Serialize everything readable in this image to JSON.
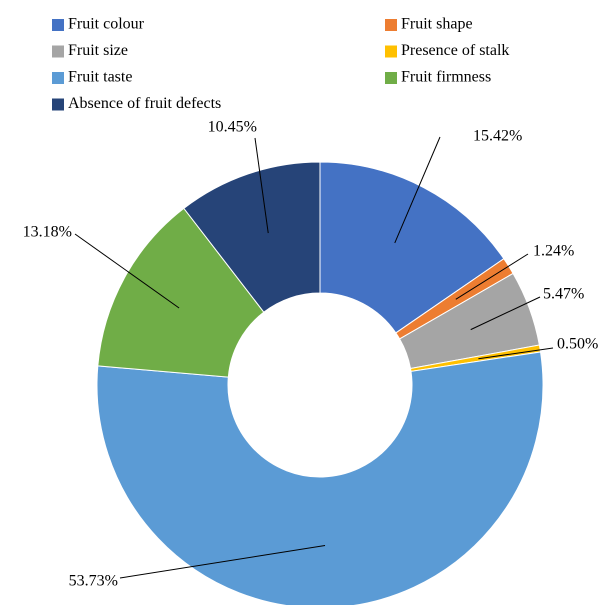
{
  "chart_data": {
    "type": "donut",
    "categories": [
      "Fruit colour",
      "Fruit shape",
      "Fruit size",
      "Presence of stalk",
      "Fruit taste",
      "Fruit firmness",
      "Absence of fruit defects"
    ],
    "values": [
      15.42,
      1.24,
      5.47,
      0.5,
      53.73,
      13.18,
      10.45
    ],
    "value_labels": [
      "15.42%",
      "1.24%",
      "5.47%",
      "0.50%",
      "53.73%",
      "13.18%",
      "10.45%"
    ],
    "colors": [
      "#4472c4",
      "#ed7d31",
      "#a5a5a5",
      "#ffc000",
      "#5b9bd5",
      "#70ad47",
      "#264478"
    ]
  }
}
